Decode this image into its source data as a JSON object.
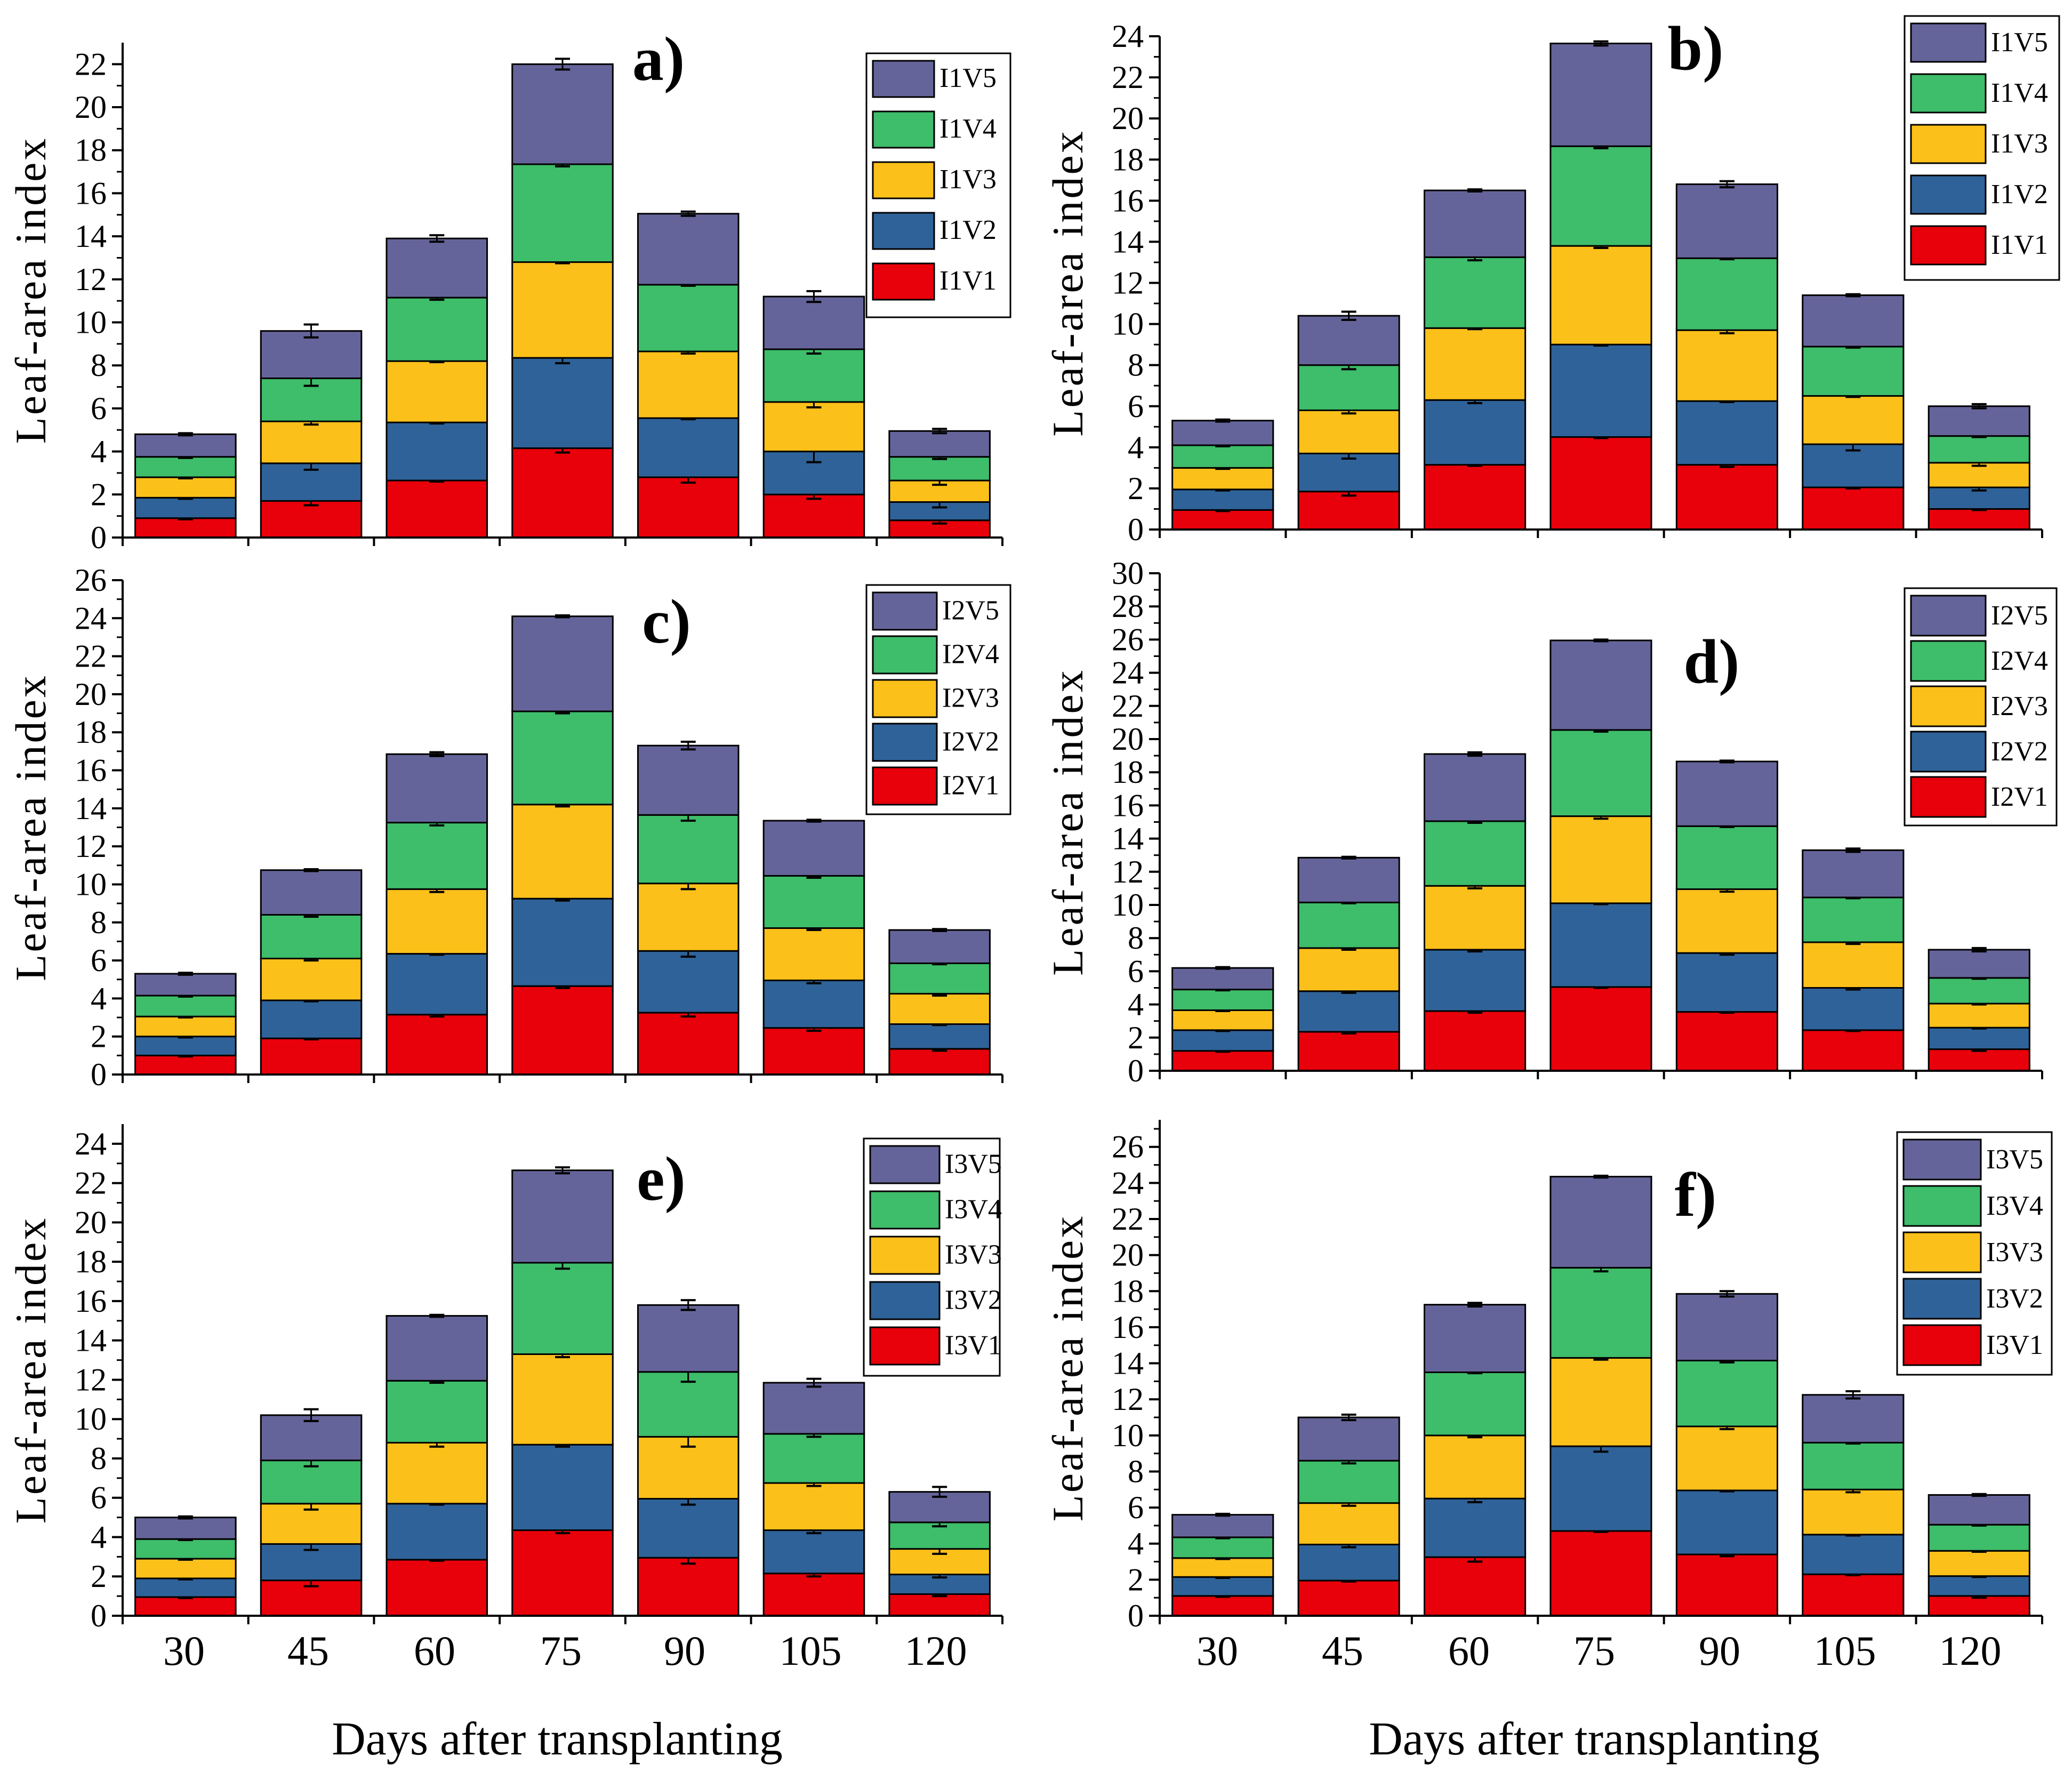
{
  "figure": {
    "x_axis_title": "Days after transplanting",
    "y_axis_title": "Leaf-area index",
    "categories": [
      "30",
      "45",
      "60",
      "75",
      "90",
      "105",
      "120"
    ],
    "colors": {
      "V1": "#e8000b",
      "V2": "#2f6298",
      "V3": "#fcc01a",
      "V4": "#3ebd6a",
      "V5": "#65649a"
    }
  },
  "chart_data": [
    {
      "type": "bar",
      "stacked": true,
      "panel": "a)",
      "ylabel": "Leaf-area index",
      "xlabel": "Days after transplanting",
      "ylim": [
        0,
        23
      ],
      "yticks": [
        0,
        2,
        4,
        6,
        8,
        10,
        12,
        14,
        16,
        18,
        20,
        22
      ],
      "legend_position": "top-right",
      "categories": [
        "30",
        "45",
        "60",
        "75",
        "90",
        "105",
        "120"
      ],
      "series": [
        {
          "name": "I1V1",
          "key": "V1",
          "values": [
            0.9,
            1.7,
            2.65,
            4.15,
            2.8,
            2.0,
            0.8
          ],
          "errors": [
            0.05,
            0.2,
            0.05,
            0.2,
            0.25,
            0.2,
            0.15
          ]
        },
        {
          "name": "I1V2",
          "key": "V2",
          "values": [
            0.95,
            1.75,
            2.7,
            4.2,
            2.75,
            2.0,
            0.85
          ],
          "errors": [
            0.05,
            0.3,
            0.05,
            0.25,
            0.05,
            0.5,
            0.25
          ]
        },
        {
          "name": "I1V3",
          "key": "V3",
          "values": [
            0.95,
            1.95,
            2.85,
            4.45,
            3.1,
            2.3,
            1.0
          ],
          "errors": [
            0.05,
            0.15,
            0.05,
            0.05,
            0.1,
            0.25,
            0.2
          ]
        },
        {
          "name": "I1V4",
          "key": "V4",
          "values": [
            0.95,
            2.0,
            2.95,
            4.55,
            3.1,
            2.45,
            1.1
          ],
          "errors": [
            0.05,
            0.35,
            0.1,
            0.1,
            0.05,
            0.2,
            0.1
          ]
        },
        {
          "name": "I1V5",
          "key": "V5",
          "values": [
            1.05,
            2.2,
            2.75,
            4.65,
            3.3,
            2.45,
            1.2
          ],
          "errors": [
            0.05,
            0.3,
            0.15,
            0.25,
            0.1,
            0.25,
            0.1
          ]
        }
      ]
    },
    {
      "type": "bar",
      "stacked": true,
      "panel": "b)",
      "ylabel": "Leaf-area index",
      "xlabel": "Days after transplanting",
      "ylim": [
        0,
        24
      ],
      "yticks": [
        0,
        2,
        4,
        6,
        8,
        10,
        12,
        14,
        16,
        18,
        20,
        22,
        24
      ],
      "legend_position": "top-right",
      "categories": [
        "30",
        "45",
        "60",
        "75",
        "90",
        "105",
        "120"
      ],
      "series": [
        {
          "name": "I1V1",
          "key": "V1",
          "values": [
            0.95,
            1.85,
            3.15,
            4.5,
            3.15,
            2.05,
            1.0
          ],
          "errors": [
            0.05,
            0.2,
            0.05,
            0.05,
            0.1,
            0.05,
            0.05
          ]
        },
        {
          "name": "I1V2",
          "key": "V2",
          "values": [
            1.0,
            1.85,
            3.15,
            4.5,
            3.1,
            2.1,
            1.05
          ],
          "errors": [
            0.05,
            0.25,
            0.15,
            0.05,
            0.05,
            0.3,
            0.15
          ]
        },
        {
          "name": "I1V3",
          "key": "V3",
          "values": [
            1.05,
            2.1,
            3.5,
            4.8,
            3.45,
            2.35,
            1.2
          ],
          "errors": [
            0.05,
            0.15,
            0.05,
            0.1,
            0.15,
            0.05,
            0.15
          ]
        },
        {
          "name": "I1V4",
          "key": "V4",
          "values": [
            1.1,
            2.2,
            3.45,
            4.85,
            3.5,
            2.4,
            1.3
          ],
          "errors": [
            0.05,
            0.2,
            0.15,
            0.1,
            0.05,
            0.05,
            0.05
          ]
        },
        {
          "name": "I1V5",
          "key": "V5",
          "values": [
            1.2,
            2.4,
            3.25,
            5.0,
            3.6,
            2.5,
            1.45
          ],
          "errors": [
            0.05,
            0.2,
            0.05,
            0.1,
            0.15,
            0.05,
            0.1
          ]
        }
      ]
    },
    {
      "type": "bar",
      "stacked": true,
      "panel": "c)",
      "ylabel": "Leaf-area index",
      "xlabel": "Days after transplanting",
      "ylim": [
        0,
        26
      ],
      "yticks": [
        0,
        2,
        4,
        6,
        8,
        10,
        12,
        14,
        16,
        18,
        20,
        22,
        24,
        26
      ],
      "legend_position": "top-right",
      "categories": [
        "30",
        "45",
        "60",
        "75",
        "90",
        "105",
        "120"
      ],
      "series": [
        {
          "name": "I2V1",
          "key": "V1",
          "values": [
            1.0,
            1.9,
            3.15,
            4.65,
            3.25,
            2.45,
            1.35
          ],
          "errors": [
            0.05,
            0.05,
            0.1,
            0.1,
            0.2,
            0.15,
            0.1
          ]
        },
        {
          "name": "I2V2",
          "key": "V2",
          "values": [
            1.0,
            2.0,
            3.2,
            4.6,
            3.25,
            2.5,
            1.3
          ],
          "errors": [
            0.05,
            0.05,
            0.05,
            0.1,
            0.3,
            0.15,
            0.05
          ]
        },
        {
          "name": "I2V3",
          "key": "V3",
          "values": [
            1.05,
            2.2,
            3.4,
            4.95,
            3.55,
            2.75,
            1.6
          ],
          "errors": [
            0.05,
            0.1,
            0.15,
            0.1,
            0.3,
            0.1,
            0.1
          ]
        },
        {
          "name": "I2V4",
          "key": "V4",
          "values": [
            1.1,
            2.3,
            3.5,
            4.9,
            3.6,
            2.75,
            1.6
          ],
          "errors": [
            0.05,
            0.1,
            0.15,
            0.1,
            0.3,
            0.1,
            0.05
          ]
        },
        {
          "name": "I2V5",
          "key": "V5",
          "values": [
            1.15,
            2.35,
            3.6,
            5.0,
            3.65,
            2.9,
            1.75
          ],
          "errors": [
            0.05,
            0.05,
            0.1,
            0.05,
            0.2,
            0.05,
            0.05
          ]
        }
      ]
    },
    {
      "type": "bar",
      "stacked": true,
      "panel": "d)",
      "ylabel": "Leaf-area index",
      "xlabel": "Days after transplanting",
      "ylim": [
        0,
        30
      ],
      "yticks": [
        0,
        2,
        4,
        6,
        8,
        10,
        12,
        14,
        16,
        18,
        20,
        22,
        24,
        26,
        28,
        30
      ],
      "legend_position": "top-right",
      "categories": [
        "30",
        "45",
        "60",
        "75",
        "90",
        "105",
        "120"
      ],
      "series": [
        {
          "name": "I2V1",
          "key": "V1",
          "values": [
            1.2,
            2.35,
            3.6,
            5.05,
            3.55,
            2.45,
            1.3
          ],
          "errors": [
            0.05,
            0.1,
            0.1,
            0.05,
            0.05,
            0.05,
            0.1
          ]
        },
        {
          "name": "I2V2",
          "key": "V2",
          "values": [
            1.25,
            2.45,
            3.7,
            5.05,
            3.55,
            2.55,
            1.3
          ],
          "errors": [
            0.05,
            0.1,
            0.1,
            0.05,
            0.1,
            0.1,
            0.05
          ]
        },
        {
          "name": "I2V3",
          "key": "V3",
          "values": [
            1.2,
            2.6,
            3.85,
            5.25,
            3.85,
            2.75,
            1.45
          ],
          "errors": [
            0.05,
            0.1,
            0.15,
            0.15,
            0.15,
            0.1,
            0.05
          ]
        },
        {
          "name": "I2V4",
          "key": "V4",
          "values": [
            1.25,
            2.75,
            3.9,
            5.2,
            3.8,
            2.7,
            1.55
          ],
          "errors": [
            0.05,
            0.05,
            0.1,
            0.1,
            0.05,
            0.05,
            0.05
          ]
        },
        {
          "name": "I2V5",
          "key": "V5",
          "values": [
            1.3,
            2.7,
            4.05,
            5.4,
            3.9,
            2.85,
            1.7
          ],
          "errors": [
            0.05,
            0.05,
            0.1,
            0.05,
            0.05,
            0.1,
            0.1
          ]
        }
      ]
    },
    {
      "type": "bar",
      "stacked": true,
      "panel": "e)",
      "ylabel": "Leaf-area index",
      "xlabel": "Days after transplanting",
      "ylim": [
        0,
        25
      ],
      "yticks": [
        0,
        2,
        4,
        6,
        8,
        10,
        12,
        14,
        16,
        18,
        20,
        22,
        24
      ],
      "legend_position": "top-right",
      "categories": [
        "30",
        "45",
        "60",
        "75",
        "90",
        "105",
        "120"
      ],
      "series": [
        {
          "name": "I3V1",
          "key": "V1",
          "values": [
            0.95,
            1.8,
            2.85,
            4.35,
            2.95,
            2.15,
            1.1
          ],
          "errors": [
            0.05,
            0.3,
            0.05,
            0.15,
            0.3,
            0.15,
            0.1
          ]
        },
        {
          "name": "I3V2",
          "key": "V2",
          "values": [
            0.95,
            1.85,
            2.85,
            4.35,
            3.0,
            2.2,
            1.0
          ],
          "errors": [
            0.05,
            0.3,
            0.05,
            0.1,
            0.3,
            0.15,
            0.15
          ]
        },
        {
          "name": "I3V3",
          "key": "V3",
          "values": [
            1.0,
            2.05,
            3.1,
            4.6,
            3.15,
            2.4,
            1.3
          ],
          "errors": [
            0.05,
            0.3,
            0.2,
            0.15,
            0.5,
            0.15,
            0.25
          ]
        },
        {
          "name": "I3V4",
          "key": "V4",
          "values": [
            1.0,
            2.2,
            3.15,
            4.65,
            3.3,
            2.5,
            1.35
          ],
          "errors": [
            0.05,
            0.3,
            0.1,
            0.3,
            0.5,
            0.15,
            0.2
          ]
        },
        {
          "name": "I3V5",
          "key": "V5",
          "values": [
            1.1,
            2.3,
            3.3,
            4.7,
            3.4,
            2.6,
            1.55
          ],
          "errors": [
            0.05,
            0.3,
            0.05,
            0.15,
            0.25,
            0.2,
            0.25
          ]
        }
      ]
    },
    {
      "type": "bar",
      "stacked": true,
      "panel": "f)",
      "ylabel": "Leaf-area index",
      "xlabel": "Days after transplanting",
      "ylim": [
        0,
        27.5
      ],
      "yticks": [
        0,
        2,
        4,
        6,
        8,
        10,
        12,
        14,
        16,
        18,
        20,
        22,
        24,
        26
      ],
      "legend_position": "top-right",
      "categories": [
        "30",
        "45",
        "60",
        "75",
        "90",
        "105",
        "120"
      ],
      "series": [
        {
          "name": "I3V1",
          "key": "V1",
          "values": [
            1.1,
            1.95,
            3.25,
            4.7,
            3.4,
            2.3,
            1.1
          ],
          "errors": [
            0.05,
            0.05,
            0.25,
            0.05,
            0.1,
            0.05,
            0.1
          ]
        },
        {
          "name": "I3V2",
          "key": "V2",
          "values": [
            1.05,
            2.0,
            3.25,
            4.7,
            3.55,
            2.2,
            1.1
          ],
          "errors": [
            0.05,
            0.15,
            0.2,
            0.3,
            0.05,
            0.05,
            0.05
          ]
        },
        {
          "name": "I3V3",
          "key": "V3",
          "values": [
            1.05,
            2.3,
            3.5,
            4.9,
            3.55,
            2.5,
            1.4
          ],
          "errors": [
            0.05,
            0.15,
            0.1,
            0.1,
            0.15,
            0.15,
            0.05
          ]
        },
        {
          "name": "I3V4",
          "key": "V4",
          "values": [
            1.15,
            2.35,
            3.5,
            5.0,
            3.65,
            2.6,
            1.45
          ],
          "errors": [
            0.05,
            0.15,
            0.05,
            0.2,
            0.1,
            0.05,
            0.05
          ]
        },
        {
          "name": "I3V5",
          "key": "V5",
          "values": [
            1.25,
            2.4,
            3.75,
            5.05,
            3.7,
            2.65,
            1.65
          ],
          "errors": [
            0.05,
            0.15,
            0.1,
            0.05,
            0.15,
            0.2,
            0.05
          ]
        }
      ]
    }
  ]
}
